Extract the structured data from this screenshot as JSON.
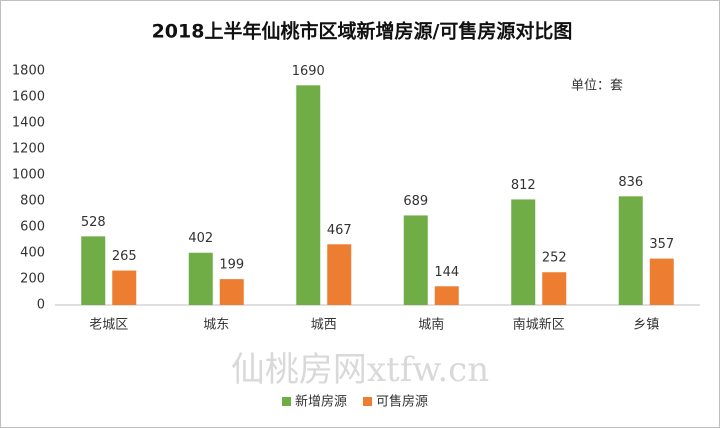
{
  "chart_data": {
    "type": "bar",
    "title": "2018上半年仙桃市区域新增房源/可售房源对比图",
    "annotation": "单位：套",
    "watermark": "仙桃房网xtfw.cn",
    "categories": [
      "老城区",
      "城东",
      "城西",
      "城南",
      "南城新区",
      "乡镇"
    ],
    "series": [
      {
        "name": "新增房源",
        "color": "#70ad47",
        "values": [
          528,
          402,
          1690,
          689,
          812,
          836
        ]
      },
      {
        "name": "可售房源",
        "color": "#ed7d31",
        "values": [
          265,
          199,
          467,
          144,
          252,
          357
        ]
      }
    ],
    "ylim": [
      0,
      1800
    ],
    "yticks": [
      0,
      200,
      400,
      600,
      800,
      1000,
      1200,
      1400,
      1600,
      1800
    ],
    "grid": false,
    "legend": "bottom"
  }
}
